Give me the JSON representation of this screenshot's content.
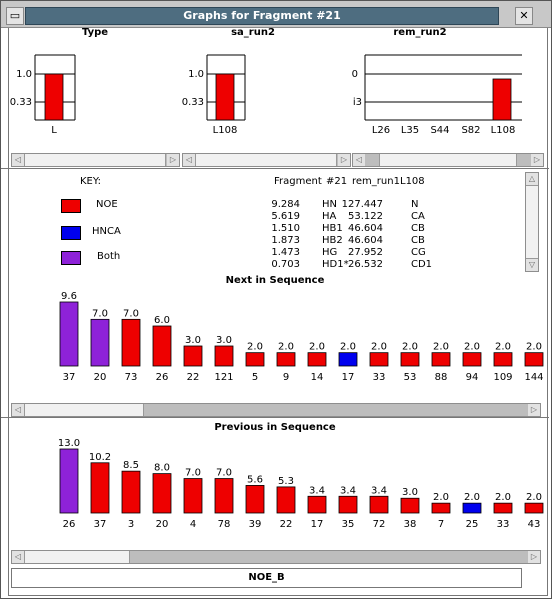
{
  "window": {
    "title": "Graphs for Fragment #21",
    "close_glyph": "✕",
    "menu_glyph": "▭"
  },
  "top_graphs": [
    {
      "title": "Type",
      "ytick_labels": [
        "1.0",
        "0.33"
      ],
      "categories": [
        "L"
      ],
      "values": [
        1.0
      ]
    },
    {
      "title": "sa_run2",
      "ytick_labels": [
        "1.0",
        "0.33"
      ],
      "categories": [
        "L108"
      ],
      "values": [
        1.0
      ]
    },
    {
      "title": "rem_run2",
      "ytick_labels": [
        "0",
        "i3"
      ],
      "categories": [
        "L26",
        "L35",
        "S44",
        "S82",
        "L108"
      ],
      "values": [
        0,
        0,
        0,
        0,
        1.0
      ]
    }
  ],
  "key": {
    "title": "KEY:",
    "items": [
      {
        "label": "NOE",
        "color": "#ee0000"
      },
      {
        "label": "HNCA",
        "color": "#0000ee"
      },
      {
        "label": "Both",
        "color": "#8e22d8"
      }
    ]
  },
  "fragment_table": {
    "header": [
      "Fragment",
      "#21",
      "rem_run1",
      "L108"
    ],
    "rows": [
      [
        "9.284",
        "HN",
        "127.447",
        "N"
      ],
      [
        "5.619",
        "HA",
        "53.122",
        "CA"
      ],
      [
        "1.510",
        "HB1",
        "46.604",
        "CB"
      ],
      [
        "1.873",
        "HB2",
        "46.604",
        "CB"
      ],
      [
        "1.473",
        "HG",
        "27.952",
        "CG"
      ],
      [
        "0.703",
        "HD1*",
        "26.532",
        "CD1"
      ]
    ]
  },
  "chart_data": [
    {
      "type": "bar",
      "title": "Next in Sequence",
      "categories": [
        "37",
        "20",
        "73",
        "26",
        "22",
        "121",
        "5",
        "9",
        "14",
        "17",
        "33",
        "53",
        "88",
        "94",
        "109",
        "144"
      ],
      "values": [
        9.6,
        7.0,
        7.0,
        6.0,
        3.0,
        3.0,
        2.0,
        2.0,
        2.0,
        2.0,
        2.0,
        2.0,
        2.0,
        2.0,
        2.0,
        2.0
      ],
      "value_labels": [
        "9.6",
        "7.0",
        "7.0",
        "6.0",
        "3.0",
        "3.0",
        "2.0",
        "2.0",
        "2.0",
        "2.0",
        "2.0",
        "2.0",
        "2.0",
        "2.0",
        "2.0",
        "2.0"
      ],
      "bar_colors": [
        "#8e22d8",
        "#8e22d8",
        "#ee0000",
        "#ee0000",
        "#ee0000",
        "#ee0000",
        "#ee0000",
        "#ee0000",
        "#ee0000",
        "#0000ee",
        "#ee0000",
        "#ee0000",
        "#ee0000",
        "#ee0000",
        "#ee0000",
        "#ee0000"
      ],
      "ylim": [
        0,
        9.6
      ]
    },
    {
      "type": "bar",
      "title": "Previous in Sequence",
      "categories": [
        "26",
        "37",
        "3",
        "20",
        "4",
        "78",
        "39",
        "22",
        "17",
        "35",
        "72",
        "38",
        "7",
        "25",
        "33",
        "43"
      ],
      "values": [
        13.0,
        10.2,
        8.5,
        8.0,
        7.0,
        7.0,
        5.6,
        5.3,
        3.4,
        3.4,
        3.4,
        3.0,
        2.0,
        2.0,
        2.0,
        2.0
      ],
      "value_labels": [
        "13.0",
        "10.2",
        "8.5",
        "8.0",
        "7.0",
        "7.0",
        "5.6",
        "5.3",
        "3.4",
        "3.4",
        "3.4",
        "3.0",
        "2.0",
        "2.0",
        "2.0",
        "2.0"
      ],
      "bar_colors": [
        "#8e22d8",
        "#ee0000",
        "#ee0000",
        "#ee0000",
        "#ee0000",
        "#ee0000",
        "#ee0000",
        "#ee0000",
        "#ee0000",
        "#ee0000",
        "#ee0000",
        "#ee0000",
        "#ee0000",
        "#0000ee",
        "#ee0000",
        "#ee0000"
      ],
      "ylim": [
        0,
        13.0
      ]
    }
  ],
  "scroll": {
    "left_arrow": "◁",
    "right_arrow": "▷",
    "up_arrow": "△",
    "down_arrow": "▽"
  },
  "bottom_button": {
    "label": "NOE_B"
  },
  "colors": {
    "noe": "#ee0000",
    "hnca": "#0000ee",
    "both": "#8e22d8"
  }
}
